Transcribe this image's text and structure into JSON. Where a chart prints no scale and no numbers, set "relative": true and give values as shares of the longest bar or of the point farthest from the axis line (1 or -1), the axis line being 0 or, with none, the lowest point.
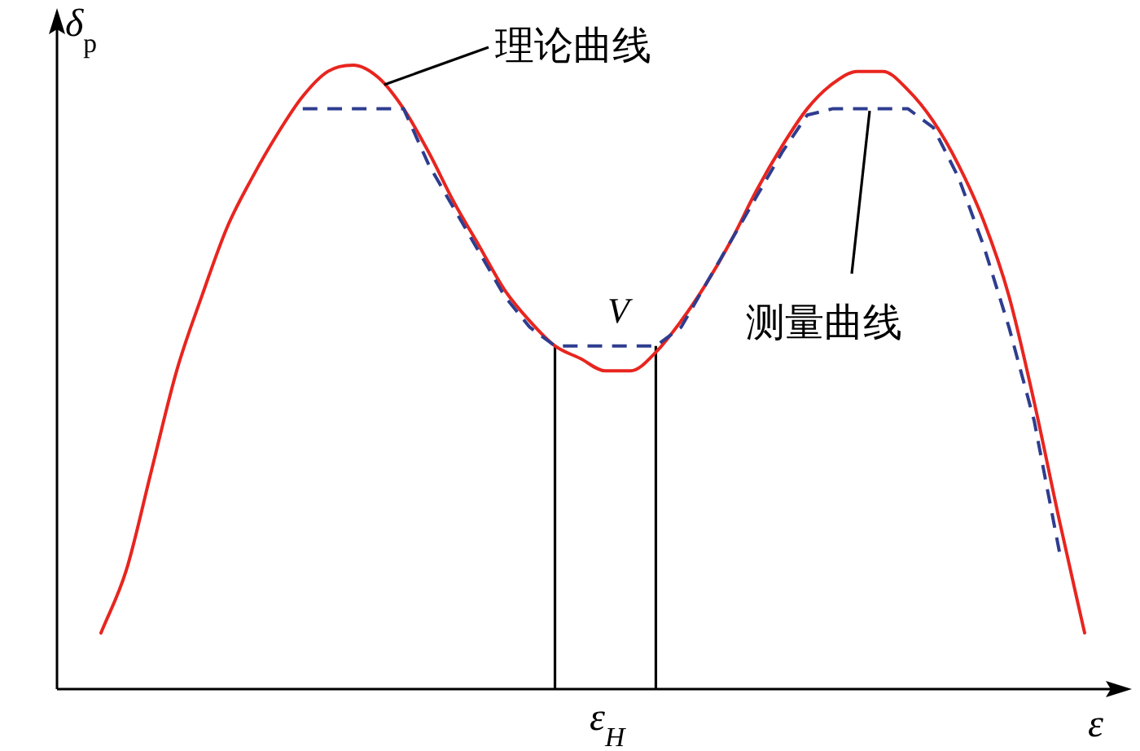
{
  "chart_data": {
    "type": "line",
    "relative": true,
    "xlabel": "ε",
    "ylabel": "δ$_{p}$",
    "categories": [
      null,
      null,
      null,
      null,
      null,
      null,
      null,
      null,
      null,
      null,
      null,
      null,
      null,
      null,
      null,
      null,
      null,
      null,
      null,
      null,
      null,
      null,
      null,
      null,
      null,
      null,
      null,
      null,
      null,
      null,
      null,
      null,
      null,
      null,
      null,
      null,
      null,
      null,
      null,
      null
    ],
    "series": [
      {
        "color": "#e8251f",
        "line_style": "solid",
        "values": [
          0.09,
          0.19,
          0.35,
          0.51,
          0.63,
          0.74,
          0.82,
          0.89,
          0.95,
          0.99,
          1.0,
          0.98,
          0.93,
          0.86,
          0.78,
          0.71,
          0.64,
          0.59,
          0.55,
          0.53,
          0.51,
          0.51,
          0.54,
          0.59,
          0.65,
          0.72,
          0.8,
          0.87,
          0.93,
          0.97,
          0.99,
          0.99,
          0.96,
          0.91,
          0.84,
          0.75,
          0.63,
          0.46,
          0.27,
          0.09
        ]
      },
      {
        "color": "#2e3d8f",
        "line_style": "dashed",
        "values": [
          null,
          null,
          null,
          null,
          null,
          null,
          null,
          null,
          0.93,
          0.93,
          0.93,
          0.93,
          0.93,
          0.84,
          0.77,
          0.7,
          0.63,
          0.58,
          0.55,
          0.55,
          0.55,
          0.55,
          0.55,
          0.58,
          0.65,
          0.72,
          0.79,
          0.86,
          0.92,
          0.93,
          0.93,
          0.93,
          0.93,
          0.9,
          0.82,
          0.71,
          0.58,
          0.43,
          0.22,
          null
        ]
      }
    ],
    "annotations": [
      "理论曲线",
      "测量曲线",
      "V",
      "ε$_{H}$"
    ]
  }
}
